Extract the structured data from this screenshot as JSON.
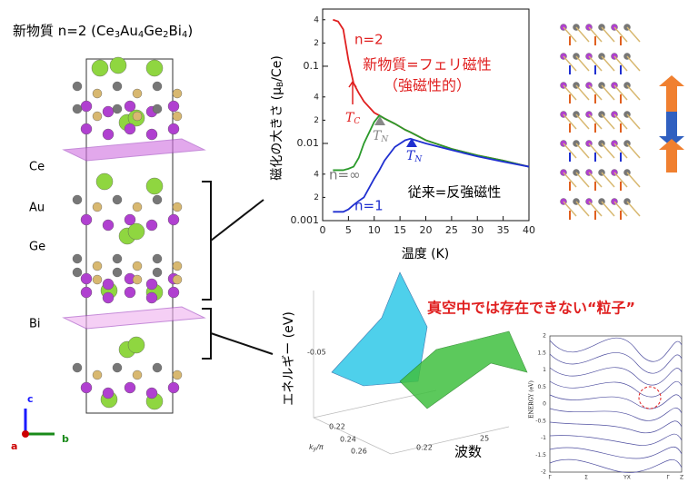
{
  "structure": {
    "title_parts": [
      "新物質 n=2 (Ce",
      "3",
      "Au",
      "4",
      "Ge",
      "2",
      "Bi",
      "4",
      ")"
    ],
    "labels": [
      "Ce",
      "Au",
      "Ge",
      "Bi"
    ],
    "axes": [
      "c",
      "a",
      "b"
    ]
  },
  "chart_data": {
    "type": "line",
    "x": [
      2,
      3,
      4,
      5,
      6,
      7,
      8,
      10,
      11,
      12,
      14,
      16,
      17,
      20,
      25,
      30,
      35,
      40
    ],
    "series": [
      {
        "name": "n=2",
        "color": "#e02020",
        "values": [
          0.4,
          0.38,
          0.3,
          0.12,
          0.06,
          0.045,
          0.035,
          0.025,
          0.023,
          0.021,
          0.018,
          0.015,
          0.014,
          0.011,
          0.0085,
          0.007,
          0.006,
          0.005
        ]
      },
      {
        "name": "n=∞",
        "color": "#2a9a2a",
        "values": [
          0.0045,
          0.0045,
          0.0045,
          0.0047,
          0.005,
          0.0065,
          0.01,
          0.019,
          0.023,
          0.021,
          0.018,
          0.015,
          0.014,
          0.011,
          0.0085,
          0.007,
          0.006,
          0.005
        ]
      },
      {
        "name": "n=1",
        "color": "#1f2fd0",
        "values": [
          0.0013,
          0.0013,
          0.0013,
          0.0014,
          0.0016,
          0.0018,
          0.002,
          0.0035,
          0.0045,
          0.006,
          0.009,
          0.011,
          0.0115,
          0.01,
          0.0082,
          0.0068,
          0.0058,
          0.005
        ]
      }
    ],
    "log_y": true,
    "xlim": [
      0,
      40
    ],
    "xticks": [
      0,
      5,
      10,
      15,
      20,
      25,
      30,
      35,
      40
    ],
    "ylim": [
      0.001,
      0.55
    ],
    "yticks": [
      0.001,
      {
        "value": 0.002,
        "label": "2"
      },
      {
        "value": 0.004,
        "label": "4"
      },
      0.01,
      {
        "value": 0.02,
        "label": "2"
      },
      {
        "value": 0.04,
        "label": "4"
      },
      0.1,
      {
        "value": 0.2,
        "label": "2"
      },
      {
        "value": 0.4,
        "label": "4"
      }
    ],
    "x_label": "温度 (K)",
    "y_label": "磁化の大きさ (μ",
    "y_label_sub": "B",
    "y_label_end": "/Ce)",
    "annotations": {
      "new": "新物質=フェリ磁性",
      "ferro": "（強磁性的）",
      "tc": "T",
      "tc_sub": "C",
      "tn": "T",
      "tn_sub": "N",
      "old": "従来=反強磁性"
    }
  },
  "band": {
    "energy_label": "エネルギー (eV)",
    "tick": "-0.05",
    "k_ticks": [
      "0.22",
      "0.24",
      "0.26",
      "0.22"
    ],
    "k_label": "k",
    "k_sub": "y",
    "k_end": "/π",
    "k2_tick": "25",
    "wave": "波数",
    "particle": "真空中では存在できない“粒子”"
  },
  "band2": {
    "yticks": [
      "2",
      "1.5",
      "1",
      "0.5",
      "0",
      "-0.5",
      "-1",
      "-1.5",
      "-2"
    ],
    "y_label": "ENERGY (eV)",
    "xlabels": [
      "Γ",
      "Σ",
      "YX",
      "Γ",
      "Z"
    ]
  }
}
